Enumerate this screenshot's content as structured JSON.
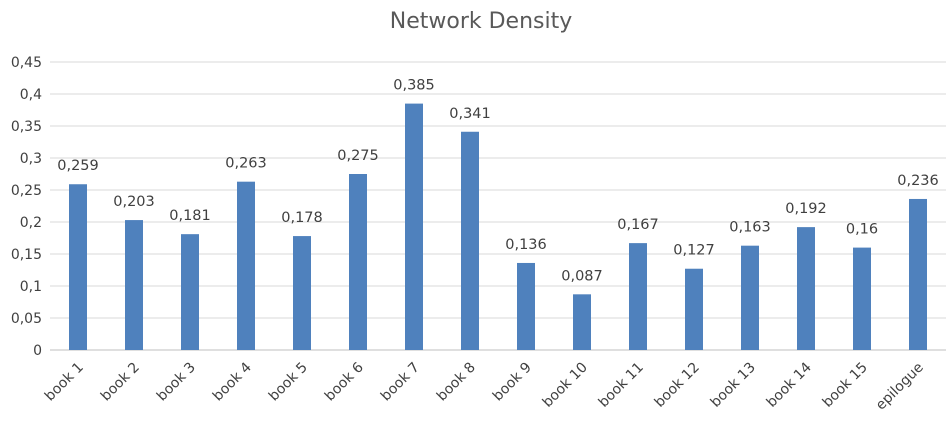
{
  "chart_data": {
    "type": "bar",
    "title": "Network Density",
    "xlabel": "",
    "ylabel": "",
    "categories": [
      "book 1",
      "book 2",
      "book 3",
      "book 4",
      "book 5",
      "book 6",
      "book 7",
      "book 8",
      "book 9",
      "book 10",
      "book 11",
      "book 12",
      "book 13",
      "book 14",
      "book 15",
      "epilogue"
    ],
    "values": [
      0.259,
      0.203,
      0.181,
      0.263,
      0.178,
      0.275,
      0.385,
      0.341,
      0.136,
      0.087,
      0.167,
      0.127,
      0.163,
      0.192,
      0.16,
      0.236
    ],
    "data_labels": [
      "0,259",
      "0,203",
      "0,181",
      "0,263",
      "0,178",
      "0,275",
      "0,385",
      "0,341",
      "0,136",
      "0,087",
      "0,167",
      "0,127",
      "0,163",
      "0,192",
      "0,16",
      "0,236"
    ],
    "y_ticks": [
      "0",
      "0,05",
      "0,1",
      "0,15",
      "0,2",
      "0,25",
      "0,3",
      "0,35",
      "0,4",
      "0,45"
    ],
    "ylim": [
      0,
      0.45
    ],
    "grid": true,
    "legend": "none",
    "bar_color": "#4f81bd"
  }
}
